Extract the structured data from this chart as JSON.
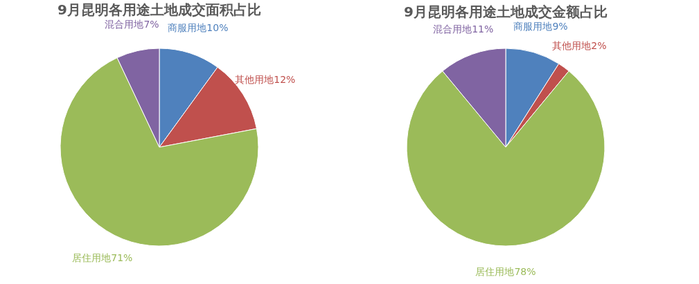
{
  "chart_data": [
    {
      "type": "pie",
      "title": "9月昆明各用途土地成交面积占比",
      "categories": [
        "商服用地",
        "其他用地",
        "居住用地",
        "混合用地"
      ],
      "values": [
        10,
        12,
        71,
        7
      ],
      "value_labels": [
        "10%",
        "12%",
        "71%",
        "7%"
      ],
      "colors": [
        "#4f81bd",
        "#c0504d",
        "#9bbb59",
        "#8064a2"
      ]
    },
    {
      "type": "pie",
      "title": "9月昆明各用途土地成交金额占比",
      "categories": [
        "商服用地",
        "其他用地",
        "居住用地",
        "混合用地"
      ],
      "values": [
        9,
        2,
        78,
        11
      ],
      "value_labels": [
        "9%",
        "2%",
        "78%",
        "11%"
      ],
      "colors": [
        "#4f81bd",
        "#c0504d",
        "#9bbb59",
        "#8064a2"
      ]
    }
  ]
}
